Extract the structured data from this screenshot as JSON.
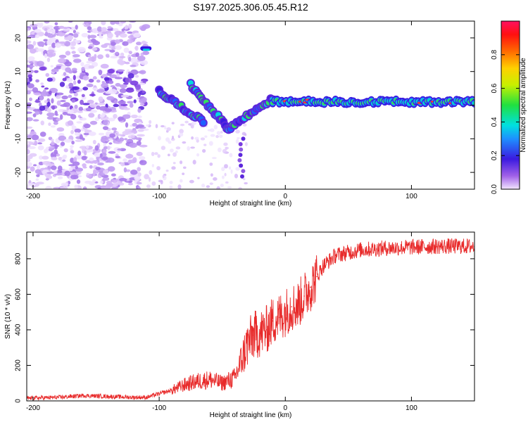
{
  "title": "S197.2025.306.05.45.R12",
  "chart_data": [
    {
      "type": "heatmap",
      "xlabel": "Height of straight line (km)",
      "ylabel": "Frequency (Hz)",
      "xlim": [
        -205,
        150
      ],
      "ylim": [
        -25,
        25
      ],
      "xticks": [
        -200,
        -100,
        0,
        100
      ],
      "yticks": [
        -20,
        -10,
        0,
        10,
        20
      ],
      "colorbar": {
        "label": "Normalized spectral amplitude",
        "range": [
          0,
          1
        ],
        "ticks": [
          "0.0",
          "0.2",
          "0.4",
          "0.6",
          "0.8"
        ]
      },
      "features": [
        {
          "segment": "diagonal-1",
          "x": [
            -100,
            -65
          ],
          "y": [
            4,
            -5
          ]
        },
        {
          "segment": "diagonal-2",
          "x": [
            -75,
            -45
          ],
          "y": [
            6,
            -7
          ]
        },
        {
          "segment": "rise",
          "x": [
            -45,
            -10
          ],
          "y": [
            -7,
            2
          ]
        },
        {
          "segment": "steady-line",
          "x": [
            -10,
            150
          ],
          "y": [
            1,
            1
          ]
        }
      ]
    },
    {
      "type": "line",
      "xlabel": "Height of straight line (km)",
      "ylabel": "SNR (10 * v/v)",
      "xlim": [
        -205,
        150
      ],
      "ylim": [
        0,
        950
      ],
      "xticks": [
        -200,
        -100,
        0,
        100
      ],
      "yticks": [
        0,
        200,
        400,
        600,
        800
      ],
      "series": [
        {
          "name": "SNR",
          "color": "#e82a2a",
          "x": [
            -205,
            -180,
            -160,
            -140,
            -120,
            -110,
            -100,
            -90,
            -80,
            -70,
            -60,
            -50,
            -40,
            -30,
            -25,
            -20,
            -15,
            -10,
            -5,
            0,
            5,
            10,
            15,
            20,
            25,
            30,
            40,
            60,
            80,
            100,
            120,
            150
          ],
          "y": [
            15,
            20,
            30,
            25,
            20,
            20,
            40,
            60,
            90,
            110,
            120,
            100,
            130,
            320,
            370,
            380,
            400,
            450,
            470,
            500,
            530,
            540,
            590,
            640,
            700,
            760,
            820,
            850,
            860,
            865,
            870,
            870
          ]
        }
      ]
    }
  ]
}
